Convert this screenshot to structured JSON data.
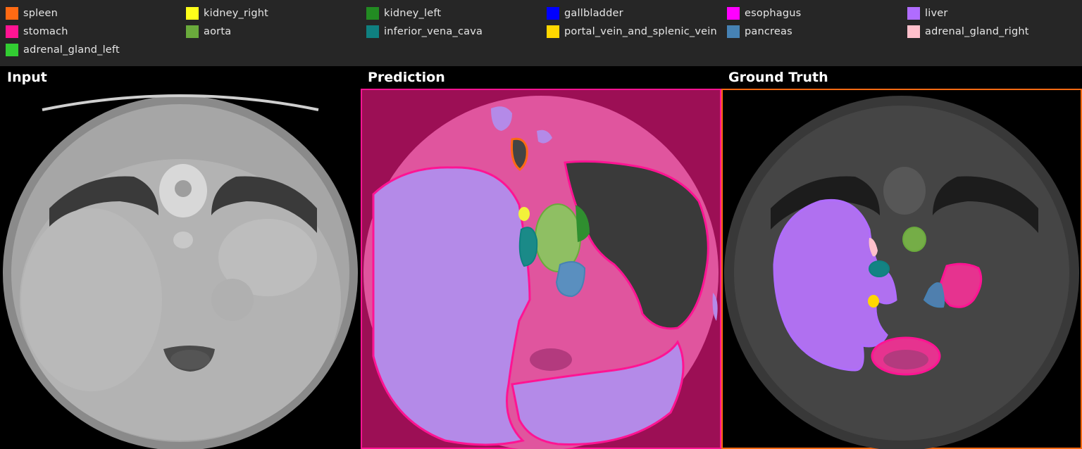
{
  "legend": {
    "items": [
      {
        "label": "spleen",
        "color": "#ff6a13"
      },
      {
        "label": "kidney_right",
        "color": "#ffff1a"
      },
      {
        "label": "kidney_left",
        "color": "#228b22"
      },
      {
        "label": "gallbladder",
        "color": "#0000ff"
      },
      {
        "label": "esophagus",
        "color": "#ff00ff"
      },
      {
        "label": "liver",
        "color": "#b06cff"
      },
      {
        "label": "stomach",
        "color": "#ff1493"
      },
      {
        "label": "aorta",
        "color": "#6aaa3c"
      },
      {
        "label": "inferior_vena_cava",
        "color": "#0f8080"
      },
      {
        "label": "portal_vein_and_splenic_vein",
        "color": "#ffd700"
      },
      {
        "label": "pancreas",
        "color": "#4682b4"
      },
      {
        "label": "adrenal_gland_right",
        "color": "#ffc0cb"
      },
      {
        "label": "adrenal_gland_left",
        "color": "#32cd32"
      }
    ]
  },
  "panels": {
    "input_title": "Input",
    "prediction_title": "Prediction",
    "ground_truth_title": "Ground Truth"
  }
}
